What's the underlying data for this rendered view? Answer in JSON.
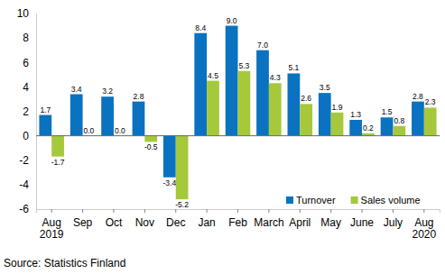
{
  "chart_data": {
    "type": "bar",
    "categories": [
      "Aug\n2019",
      "Sep",
      "Oct",
      "Nov",
      "Dec",
      "Jan",
      "Feb",
      "March",
      "April",
      "May",
      "June",
      "July",
      "Aug\n2020"
    ],
    "series": [
      {
        "name": "Turnover",
        "color": "#0a72c0",
        "values": [
          1.7,
          3.4,
          3.2,
          2.8,
          -3.4,
          8.4,
          9.0,
          7.0,
          5.1,
          3.5,
          1.3,
          1.5,
          2.8
        ],
        "value_labels": [
          "1.7",
          "3.4",
          "3.2",
          "2.8",
          "-3.4",
          "8.4",
          "9.0",
          "7.0",
          "5.1",
          "3.5",
          "1.3",
          "1.5",
          "2.8"
        ]
      },
      {
        "name": "Sales volume",
        "color": "#a5c93b",
        "values": [
          -1.7,
          0.0,
          0.0,
          -0.5,
          -5.2,
          4.5,
          5.3,
          4.3,
          2.6,
          1.9,
          0.2,
          0.8,
          2.3
        ],
        "value_labels": [
          "-1.7",
          "0.0",
          "0.0",
          "-0.5",
          "-5.2",
          "4.5",
          "5.3",
          "4.3",
          "2.6",
          "1.9",
          "0.2",
          "0.8",
          "2.3"
        ]
      }
    ],
    "ylim": [
      -6,
      10
    ],
    "yticks": [
      -6,
      -4,
      -2,
      0,
      2,
      4,
      6,
      8,
      10
    ],
    "grid": false,
    "legend": "lower right",
    "data_labels": true,
    "source": "Source: Statistics Finland"
  }
}
